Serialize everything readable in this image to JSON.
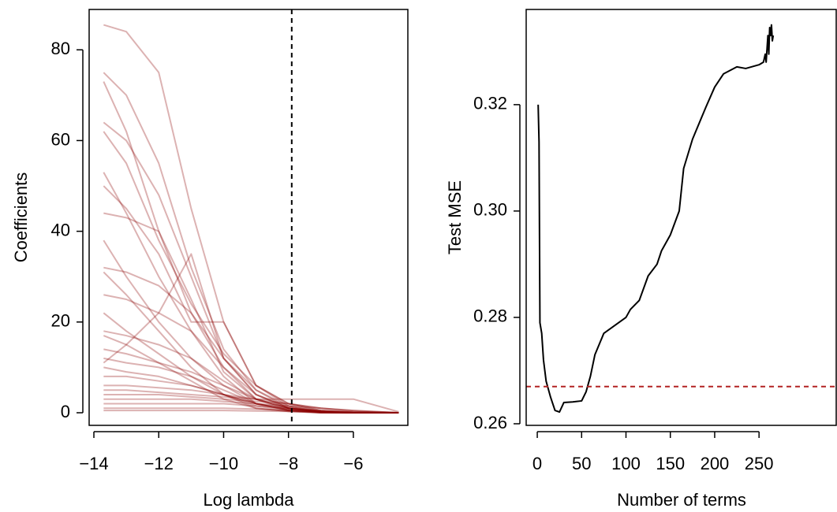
{
  "chart_data": [
    {
      "type": "line",
      "x_label": "Log lambda",
      "y_label": "Coefficients",
      "x": [
        -13.7,
        -13,
        -12,
        -11,
        -10,
        -9,
        -8,
        -7,
        -6,
        -4.6
      ],
      "color": "#8b0000",
      "alpha": 0.3,
      "series": [
        {
          "values": [
            85.5,
            84,
            75,
            45,
            20,
            6,
            1.5,
            0.2,
            0,
            0
          ]
        },
        {
          "values": [
            75,
            70,
            55,
            32,
            14,
            5,
            1,
            0.1,
            0,
            0
          ]
        },
        {
          "values": [
            73,
            62,
            40,
            22,
            10,
            3,
            0.5,
            0,
            0,
            0
          ]
        },
        {
          "values": [
            64,
            60,
            48,
            30,
            12,
            4,
            1,
            0.2,
            0,
            0
          ]
        },
        {
          "values": [
            62,
            55,
            38,
            24,
            13,
            6,
            2,
            0.5,
            0,
            0
          ]
        },
        {
          "values": [
            53,
            44,
            30,
            18,
            8,
            2,
            0.5,
            0,
            0,
            0
          ]
        },
        {
          "values": [
            50,
            45,
            35,
            20,
            20,
            6,
            2,
            0.5,
            0.1,
            0
          ]
        },
        {
          "values": [
            44,
            43,
            40,
            25,
            9,
            3,
            1,
            0.2,
            0,
            0
          ]
        },
        {
          "values": [
            38,
            30,
            20,
            12,
            6,
            2,
            0.6,
            0.1,
            0,
            0
          ]
        },
        {
          "values": [
            32,
            31,
            28,
            22,
            12,
            5,
            1.5,
            0.3,
            0,
            0
          ]
        },
        {
          "values": [
            31,
            26,
            18,
            10,
            4,
            1,
            0.3,
            0,
            0,
            0
          ]
        },
        {
          "values": [
            26,
            25,
            22,
            18,
            10,
            4,
            1.3,
            0.3,
            0,
            0
          ]
        },
        {
          "values": [
            22,
            18,
            13,
            8,
            4,
            1.5,
            0.5,
            0.1,
            0,
            0
          ]
        },
        {
          "values": [
            18,
            17,
            15,
            12,
            7,
            3,
            1,
            0.2,
            0,
            0
          ]
        },
        {
          "values": [
            17,
            15,
            11,
            7,
            3,
            1,
            0.3,
            0,
            0,
            0
          ]
        },
        {
          "values": [
            14,
            13,
            11,
            9,
            6,
            3,
            1,
            0.3,
            0,
            0
          ]
        },
        {
          "values": [
            12,
            11,
            10,
            8,
            5,
            2,
            0.7,
            0.2,
            0,
            0
          ]
        },
        {
          "values": [
            10,
            9,
            8,
            6,
            4,
            2,
            0.6,
            0.1,
            0,
            0
          ]
        },
        {
          "values": [
            8,
            8,
            7,
            6,
            4,
            2,
            1,
            0.3,
            0,
            0
          ]
        },
        {
          "values": [
            6,
            6,
            5.5,
            5,
            4,
            3,
            2,
            1,
            0.3,
            0
          ]
        },
        {
          "values": [
            5,
            5,
            4.5,
            4,
            3.5,
            3,
            3,
            3,
            3,
            0.2
          ]
        },
        {
          "values": [
            4,
            4,
            4,
            3.5,
            3,
            2.5,
            2,
            1,
            0.5,
            0
          ]
        },
        {
          "values": [
            3,
            3,
            3,
            3,
            2.5,
            2,
            1.5,
            1,
            0.5,
            0
          ]
        },
        {
          "values": [
            2,
            2,
            2,
            2,
            2,
            1.5,
            1,
            0.5,
            0.2,
            0
          ]
        },
        {
          "values": [
            1,
            1,
            1,
            1,
            1,
            0.8,
            0.5,
            0.3,
            0.1,
            0
          ]
        },
        {
          "values": [
            11,
            15,
            22,
            35,
            12,
            4,
            1,
            0.2,
            0,
            0
          ]
        },
        {
          "values": [
            0.5,
            0.5,
            0.5,
            0.5,
            0.5,
            0.4,
            0.3,
            0.2,
            0.1,
            0
          ]
        }
      ],
      "xlim": [
        -14.146,
        -4.32
      ],
      "ylim": [
        -2.78,
        88.9
      ],
      "xticks": [
        {
          "value": -14,
          "label": "−14"
        },
        {
          "value": -12,
          "label": "−12"
        },
        {
          "value": -10,
          "label": "−10"
        },
        {
          "value": -8,
          "label": "−8"
        },
        {
          "value": -6,
          "label": "−6"
        }
      ],
      "yticks": [
        0,
        20,
        40,
        60,
        80
      ],
      "vline": -7.9,
      "vline_color": "#000000"
    },
    {
      "type": "line",
      "x_label": "Number of terms",
      "y_label": "Test MSE",
      "x": [
        1,
        2,
        3,
        5,
        7,
        10,
        15,
        20,
        25,
        30,
        40,
        50,
        55,
        60,
        65,
        70,
        75,
        100,
        105,
        115,
        125,
        135,
        140,
        150,
        160,
        165,
        175,
        190,
        200,
        210,
        225,
        235,
        250,
        255,
        257,
        258,
        260,
        261,
        262,
        263,
        264,
        265,
        266
      ],
      "color": "#000000",
      "series": [
        {
          "values": [
            0.32,
            0.313,
            0.279,
            0.277,
            0.272,
            0.268,
            0.265,
            0.2625,
            0.2622,
            0.264,
            0.2641,
            0.2643,
            0.266,
            0.269,
            0.273,
            0.275,
            0.277,
            0.28,
            0.2815,
            0.2832,
            0.2878,
            0.29,
            0.2925,
            0.2955,
            0.3,
            0.308,
            0.3135,
            0.3195,
            0.3233,
            0.3258,
            0.3271,
            0.3268,
            0.3275,
            0.328,
            0.3295,
            0.328,
            0.333,
            0.3295,
            0.3345,
            0.333,
            0.335,
            0.332,
            0.333
          ]
        }
      ],
      "xlim": [
        -12.5,
        337
      ],
      "ylim": [
        0.2597,
        0.3379
      ],
      "xticks": [
        0,
        50,
        100,
        150,
        200,
        250
      ],
      "yticks": [
        0.26,
        0.28,
        {
          "value": 0.3,
          "label": "0.30"
        },
        0.32
      ],
      "hline": 0.267,
      "hline_color": "#b22222"
    }
  ]
}
